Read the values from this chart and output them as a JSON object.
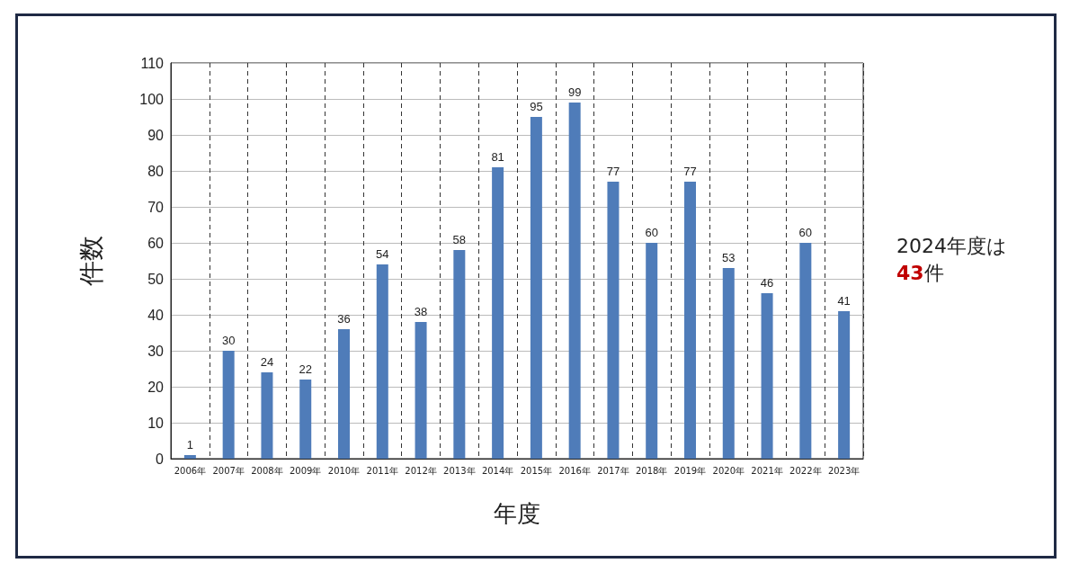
{
  "chart_data": {
    "type": "bar",
    "xlabel": "年度",
    "ylabel": "件数",
    "categories": [
      "2006年",
      "2007年",
      "2008年",
      "2009年",
      "2010年",
      "2011年",
      "2012年",
      "2013年",
      "2014年",
      "2015年",
      "2016年",
      "2017年",
      "2018年",
      "2019年",
      "2020年",
      "2021年",
      "2022年",
      "2023年"
    ],
    "values": [
      1,
      30,
      24,
      22,
      36,
      54,
      38,
      58,
      81,
      95,
      99,
      77,
      60,
      77,
      53,
      46,
      60,
      41
    ],
    "color": "#4f7cb9",
    "ylim": [
      0,
      110
    ],
    "yticks": [
      0,
      10,
      20,
      30,
      40,
      50,
      60,
      70,
      80,
      90,
      100,
      110
    ],
    "grid": true,
    "data_labels": true,
    "annotations": [
      "2024年度は43件"
    ]
  }
}
